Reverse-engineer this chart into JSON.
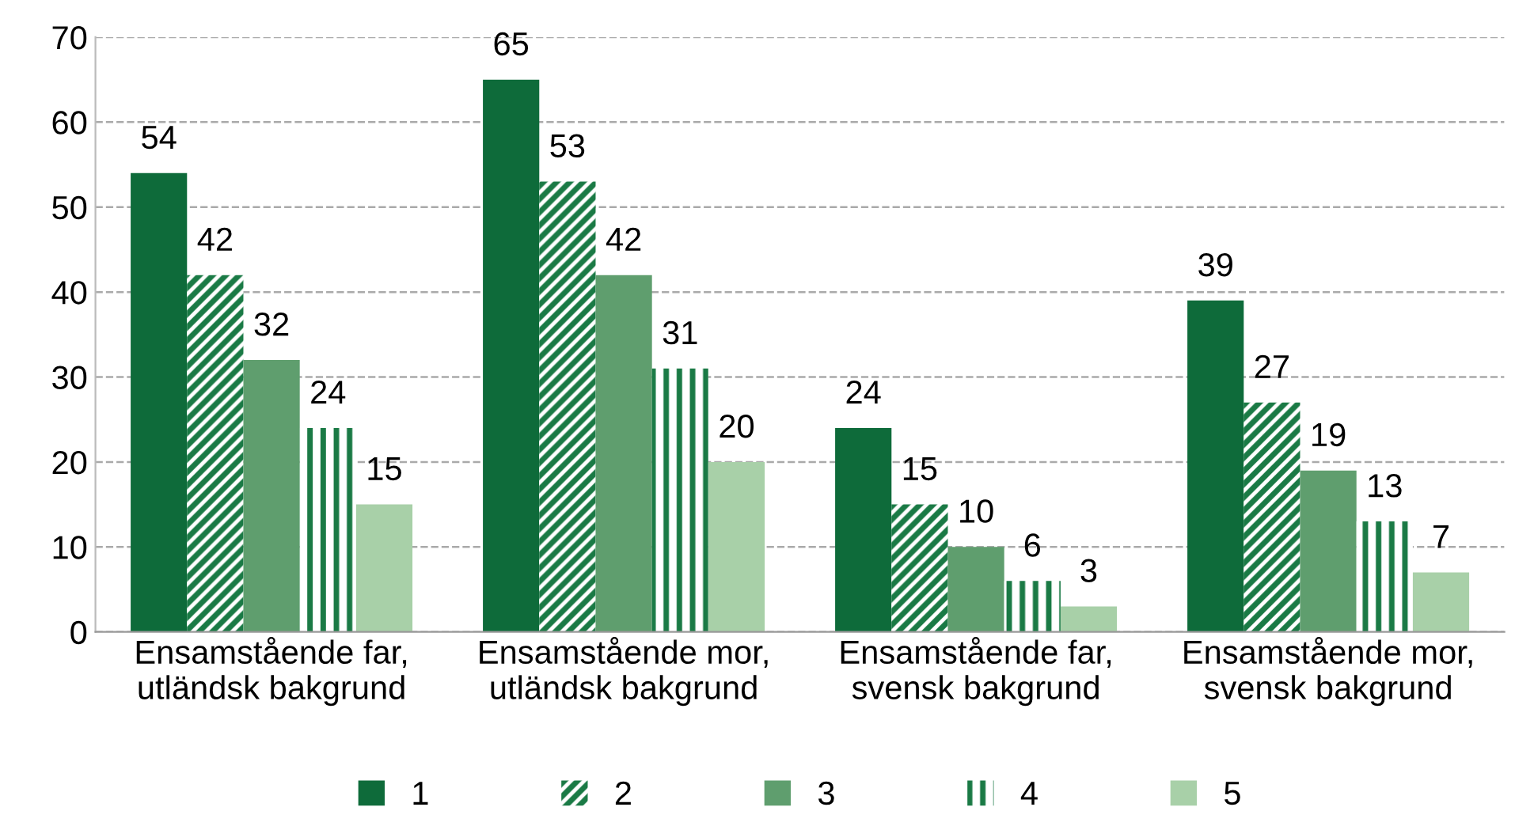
{
  "chart_data": {
    "type": "bar",
    "categories": [
      "Ensamstående far,\nutländsk bakgrund",
      "Ensamstående mor,\nutländsk bakgrund",
      "Ensamstående far,\nsvensk bakgrund",
      "Ensamstående mor,\nsvensk bakgrund"
    ],
    "series": [
      {
        "name": "1",
        "color": "#0e6b3a",
        "values": [
          54,
          65,
          24,
          39
        ]
      },
      {
        "name": "2",
        "color": "#1a7a45",
        "values": [
          42,
          53,
          15,
          27
        ]
      },
      {
        "name": "3",
        "color": "#5f9e6e",
        "values": [
          32,
          42,
          10,
          19
        ]
      },
      {
        "name": "4",
        "color": "#1a7a45",
        "values": [
          24,
          31,
          6,
          13
        ]
      },
      {
        "name": "5",
        "color": "#a8d0a8",
        "values": [
          15,
          20,
          3,
          7
        ]
      }
    ],
    "ylim": [
      0,
      70
    ],
    "yticks": [
      0,
      10,
      20,
      30,
      40,
      50,
      60,
      70
    ],
    "grid": "y",
    "legend": "bottom",
    "data_labels": true
  }
}
